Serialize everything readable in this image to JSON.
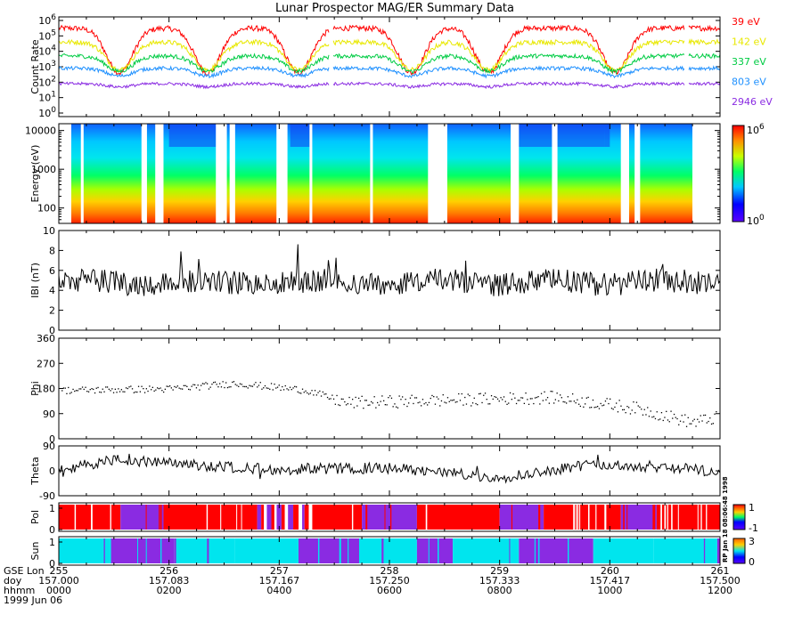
{
  "chart_data": {
    "type": "multi-panel time series",
    "title": "Lunar Prospector MAG/ER Summary Data",
    "date": "1999 Jun 06",
    "stamp": "RP Jan 18 08:06:48 1998",
    "panels": [
      {
        "id": "count-rate",
        "type": "line",
        "ylabel": "Count Rate",
        "yscale": "log",
        "ylim": [
          1,
          1000000
        ],
        "ytick_labels": [
          "10^0",
          "10^1",
          "10^2",
          "10^3",
          "10^4",
          "10^5",
          "10^6"
        ],
        "series": [
          {
            "name": "39 eV",
            "color": "#ff0000",
            "base_log": 5.5,
            "dip_log": 2.6
          },
          {
            "name": "142 eV",
            "color": "#e8e800",
            "base_log": 4.6,
            "dip_log": 2.8
          },
          {
            "name": "337 eV",
            "color": "#00cc44",
            "base_log": 3.7,
            "dip_log": 2.7
          },
          {
            "name": "803 eV",
            "color": "#1e90ff",
            "base_log": 2.9,
            "dip_log": 2.4
          },
          {
            "name": "2946 eV",
            "color": "#8a2be2",
            "base_log": 1.9,
            "dip_log": 1.7
          }
        ],
        "dip_centers_hours": [
          1.1,
          2.7,
          4.35,
          6.4,
          7.8,
          10.1
        ]
      },
      {
        "id": "energy-spectrogram",
        "type": "heatmap",
        "ylabel": "Energy (eV)",
        "yscale": "log",
        "ylim": [
          40,
          15000
        ],
        "ytick_labels": [
          "100",
          "1000",
          "10000"
        ],
        "colorbar_labels": [
          "10^0",
          "10^6"
        ],
        "gaps_hours": [
          [
            0.05,
            0.1
          ],
          [
            0.4,
            0.45
          ],
          [
            1.5,
            1.6
          ],
          [
            1.75,
            1.9
          ],
          [
            2.85,
            3.05
          ],
          [
            3.1,
            3.2
          ],
          [
            3.95,
            4.15
          ],
          [
            4.55,
            4.6
          ],
          [
            5.65,
            5.7
          ],
          [
            6.7,
            7.05
          ],
          [
            8.2,
            8.35
          ],
          [
            8.95,
            9.05
          ],
          [
            10.2,
            10.35
          ],
          [
            10.45,
            10.55
          ]
        ]
      },
      {
        "id": "b-magnitude",
        "type": "line",
        "ylabel": "IBI (nT)",
        "ylim": [
          0,
          10
        ],
        "ytick_labels": [
          "0",
          "2",
          "4",
          "6",
          "8",
          "10"
        ],
        "mean": 4.8,
        "spread": 1.2
      },
      {
        "id": "phi",
        "type": "scatter",
        "ylabel": "Phi",
        "ylim": [
          0,
          360
        ],
        "ytick_labels": [
          "0",
          "90",
          "180",
          "270",
          "360"
        ],
        "trend": [
          {
            "x": 0,
            "y": 175
          },
          {
            "x": 2,
            "y": 180
          },
          {
            "x": 3.2,
            "y": 200
          },
          {
            "x": 4.5,
            "y": 175
          },
          {
            "x": 5.2,
            "y": 130
          },
          {
            "x": 7,
            "y": 140
          },
          {
            "x": 9,
            "y": 150
          },
          {
            "x": 10.5,
            "y": 110
          },
          {
            "x": 11.5,
            "y": 60
          },
          {
            "x": 12,
            "y": 80
          }
        ]
      },
      {
        "id": "theta",
        "type": "line",
        "ylabel": "Theta",
        "ylim": [
          -90,
          90
        ],
        "ytick_labels": [
          "-90",
          "0",
          "90"
        ],
        "trend": [
          {
            "x": 0,
            "y": 5
          },
          {
            "x": 1,
            "y": 40
          },
          {
            "x": 2.5,
            "y": 20
          },
          {
            "x": 4,
            "y": 5
          },
          {
            "x": 6,
            "y": 10
          },
          {
            "x": 8,
            "y": -25
          },
          {
            "x": 9.5,
            "y": 20
          },
          {
            "x": 11,
            "y": 15
          },
          {
            "x": 12,
            "y": -5
          }
        ]
      },
      {
        "id": "pol",
        "type": "categorical",
        "ylabel": "Pol",
        "ytick_labels": [
          "0",
          "1"
        ],
        "colorbar_labels": [
          "1",
          "-1"
        ],
        "segments": [
          {
            "start": 0.0,
            "end": 1.12,
            "value": "red"
          },
          {
            "start": 1.12,
            "end": 1.9,
            "value": "purple"
          },
          {
            "start": 1.9,
            "end": 3.6,
            "value": "red"
          },
          {
            "start": 3.6,
            "end": 4.6,
            "value": "mixed"
          },
          {
            "start": 4.6,
            "end": 5.5,
            "value": "red"
          },
          {
            "start": 5.5,
            "end": 6.5,
            "value": "purple"
          },
          {
            "start": 6.5,
            "end": 8.0,
            "value": "red"
          },
          {
            "start": 8.0,
            "end": 8.8,
            "value": "purple"
          },
          {
            "start": 8.8,
            "end": 10.2,
            "value": "red"
          },
          {
            "start": 10.2,
            "end": 10.85,
            "value": "purple"
          },
          {
            "start": 10.85,
            "end": 12.0,
            "value": "red"
          }
        ],
        "colors": {
          "red": "#ff0000",
          "purple": "#8a2be2",
          "white": "#ffffff"
        }
      },
      {
        "id": "sun",
        "type": "categorical",
        "ylabel": "Sun",
        "ytick_labels": [
          "0",
          "1"
        ],
        "colorbar_labels": [
          "3",
          "0"
        ],
        "segments": [
          {
            "start": 0.0,
            "end": 0.95,
            "value": "cyan"
          },
          {
            "start": 0.95,
            "end": 2.1,
            "value": "purple"
          },
          {
            "start": 2.1,
            "end": 3.0,
            "value": "cyan"
          },
          {
            "start": 3.0,
            "end": 3.2,
            "value": "cyan"
          },
          {
            "start": 3.2,
            "end": 4.35,
            "value": "cyan"
          },
          {
            "start": 4.35,
            "end": 5.45,
            "value": "purple"
          },
          {
            "start": 5.45,
            "end": 6.5,
            "value": "cyan"
          },
          {
            "start": 6.5,
            "end": 7.15,
            "value": "purple"
          },
          {
            "start": 7.15,
            "end": 8.35,
            "value": "cyan"
          },
          {
            "start": 8.35,
            "end": 9.7,
            "value": "purple"
          },
          {
            "start": 9.7,
            "end": 10.8,
            "value": "cyan"
          },
          {
            "start": 10.8,
            "end": 11.95,
            "value": "cyan"
          },
          {
            "start": 11.95,
            "end": 12.0,
            "value": "purple"
          }
        ],
        "colors": {
          "cyan": "#00e5ee",
          "purple": "#8a2be2"
        }
      }
    ],
    "x_axis": {
      "range_hours": [
        0,
        12
      ],
      "row_labels": [
        "GSE Lon",
        "doy",
        "hhmm"
      ],
      "ticks": [
        {
          "hour": 0,
          "gse_lon": "255",
          "doy": "157.000",
          "hhmm": "0000"
        },
        {
          "hour": 2,
          "gse_lon": "256",
          "doy": "157.083",
          "hhmm": "0200"
        },
        {
          "hour": 4,
          "gse_lon": "257",
          "doy": "157.167",
          "hhmm": "0400"
        },
        {
          "hour": 6,
          "gse_lon": "258",
          "doy": "157.250",
          "hhmm": "0600"
        },
        {
          "hour": 8,
          "gse_lon": "259",
          "doy": "157.333",
          "hhmm": "0800"
        },
        {
          "hour": 10,
          "gse_lon": "260",
          "doy": "157.417",
          "hhmm": "1000"
        },
        {
          "hour": 12,
          "gse_lon": "261",
          "doy": "157.500",
          "hhmm": "1200"
        }
      ]
    }
  }
}
